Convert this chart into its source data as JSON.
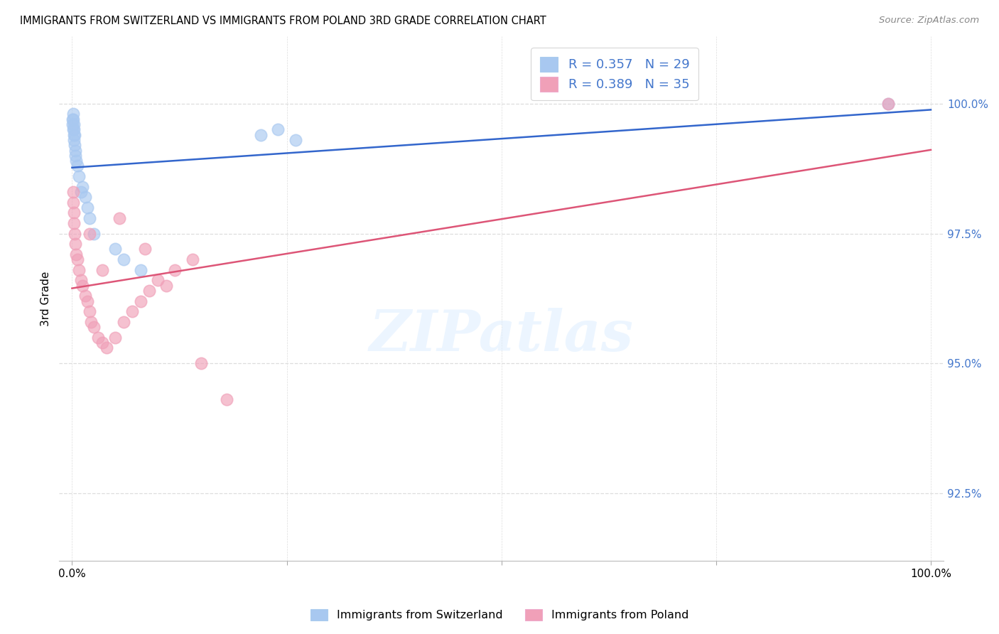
{
  "title": "IMMIGRANTS FROM SWITZERLAND VS IMMIGRANTS FROM POLAND 3RD GRADE CORRELATION CHART",
  "source": "Source: ZipAtlas.com",
  "ylabel_label": "3rd Grade",
  "legend_label1": "Immigrants from Switzerland",
  "legend_label2": "Immigrants from Poland",
  "R1": 0.357,
  "N1": 29,
  "R2": 0.389,
  "N2": 35,
  "color_swiss": "#a8c8f0",
  "color_poland": "#f0a0b8",
  "color_swiss_line": "#3366cc",
  "color_poland_line": "#dd5577",
  "color_tick_labels": "#4477cc",
  "color_grid": "#dddddd",
  "xlim": [
    -1.5,
    101.5
  ],
  "ylim": [
    91.2,
    101.3
  ],
  "yticks": [
    92.5,
    95.0,
    97.5,
    100.0
  ],
  "xticks": [
    0.0,
    25.0,
    50.0,
    75.0,
    100.0
  ],
  "swiss_x": [
    0.05,
    0.08,
    0.1,
    0.12,
    0.15,
    0.18,
    0.2,
    0.22,
    0.25,
    0.28,
    0.3,
    0.35,
    0.4,
    0.5,
    0.6,
    0.8,
    1.0,
    1.2,
    1.5,
    1.8,
    2.0,
    2.5,
    5.0,
    6.0,
    8.0,
    22.0,
    24.0,
    26.0,
    95.0
  ],
  "swiss_y": [
    99.7,
    99.6,
    99.8,
    99.5,
    99.7,
    99.4,
    99.6,
    99.5,
    99.3,
    99.4,
    99.2,
    99.1,
    99.0,
    98.9,
    98.8,
    98.6,
    98.3,
    98.4,
    98.2,
    98.0,
    97.8,
    97.5,
    97.2,
    97.0,
    96.8,
    99.4,
    99.5,
    99.3,
    100.0
  ],
  "poland_x": [
    0.1,
    0.15,
    0.2,
    0.25,
    0.3,
    0.4,
    0.5,
    0.6,
    0.8,
    1.0,
    1.2,
    1.5,
    1.8,
    2.0,
    2.2,
    2.5,
    3.0,
    3.5,
    4.0,
    5.0,
    6.0,
    7.0,
    8.0,
    9.0,
    10.0,
    12.0,
    14.0,
    2.0,
    3.5,
    5.5,
    8.5,
    11.0,
    15.0,
    18.0,
    95.0
  ],
  "poland_y": [
    98.3,
    98.1,
    97.9,
    97.7,
    97.5,
    97.3,
    97.1,
    97.0,
    96.8,
    96.6,
    96.5,
    96.3,
    96.2,
    96.0,
    95.8,
    95.7,
    95.5,
    95.4,
    95.3,
    95.5,
    95.8,
    96.0,
    96.2,
    96.4,
    96.6,
    96.8,
    97.0,
    97.5,
    96.8,
    97.8,
    97.2,
    96.5,
    95.0,
    94.3,
    100.0
  ],
  "swiss_line_x": [
    0.0,
    100.0
  ],
  "swiss_line_y_start": 99.0,
  "swiss_line_y_end": 100.0,
  "poland_line_x": [
    0.0,
    100.0
  ],
  "poland_line_y_start": 97.5,
  "poland_line_y_end": 100.2
}
